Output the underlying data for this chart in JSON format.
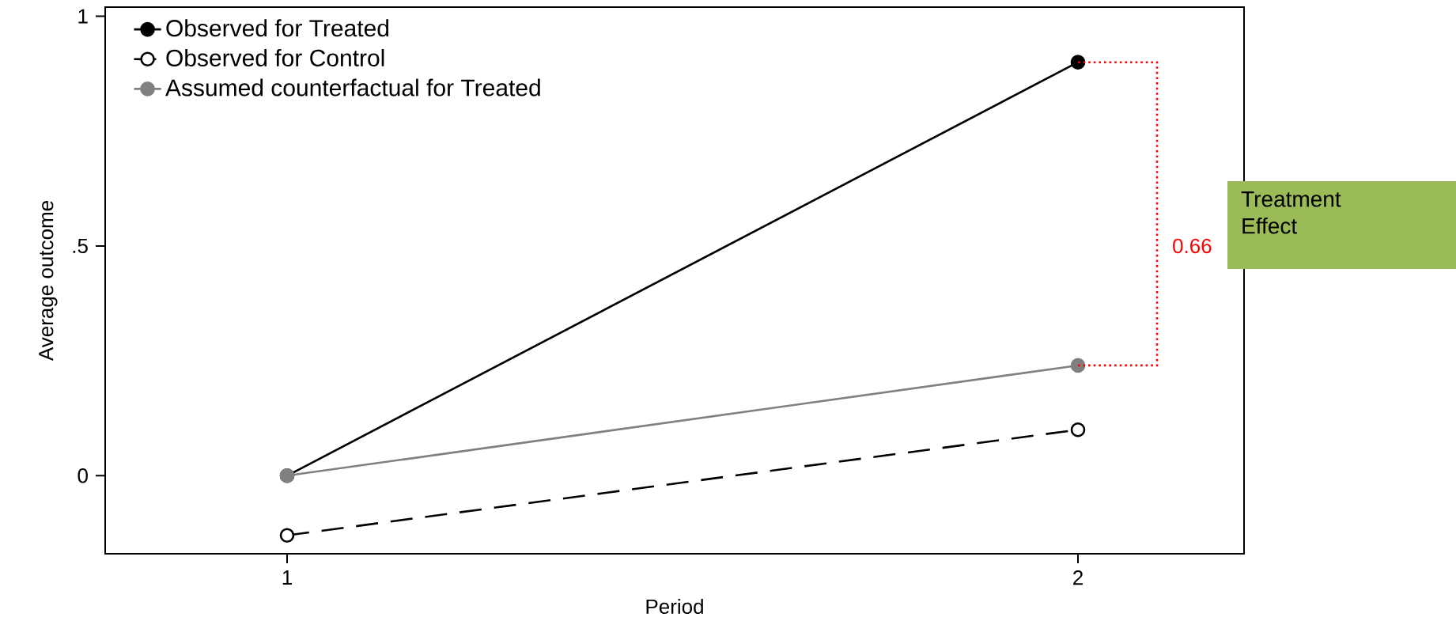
{
  "chart_data": {
    "type": "line",
    "xlabel": "Period",
    "ylabel": "Average outcome",
    "x": [
      1,
      2
    ],
    "series": [
      {
        "name": "Observed for Treated",
        "color": "#000000",
        "values": [
          0.0,
          0.9
        ],
        "line_style": "solid",
        "marker": "circle"
      },
      {
        "name": "Observed for Control",
        "color": "#000000",
        "values": [
          -0.13,
          0.1
        ],
        "line_style": "dashed",
        "marker": "circle"
      },
      {
        "name": "Assumed counterfactual for Treated",
        "color": "#808080",
        "values": [
          0.0,
          0.24
        ],
        "line_style": "solid",
        "marker": "circle"
      }
    ],
    "xlim": [
      0.77,
      2.21
    ],
    "ylim": [
      -0.17,
      1.02
    ],
    "xticks": [
      1,
      2
    ],
    "yticks": [
      0,
      {
        "value": 0.5,
        "label": ".5"
      },
      1
    ],
    "legend": "top left",
    "grid": false,
    "annotations": [
      "0.66",
      "Treatment Effect"
    ]
  }
}
